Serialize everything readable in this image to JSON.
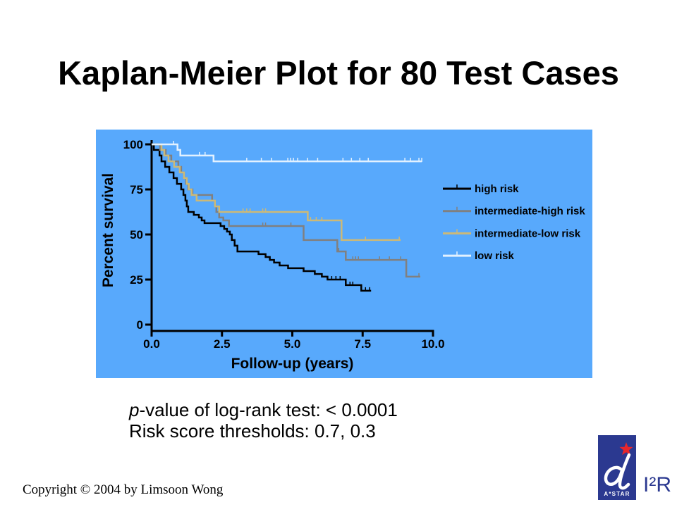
{
  "slide": {
    "title": "Kaplan-Meier Plot for 80 Test Cases",
    "note_italic": "p",
    "note_rest": "-value of log-rank test: < 0.0001",
    "thresholds": "Risk score thresholds: 0.7, 0.3",
    "copyright": "Copyright © 2004 by Limsoon Wong"
  },
  "logo": {
    "name": "A*STAR",
    "institute": "I²R",
    "panel_color": "#2B3990",
    "star_color": "#E8262B",
    "mark_color": "#FFFFFF"
  },
  "chart_data": {
    "type": "line",
    "step": true,
    "xlabel": "Follow-up (years)",
    "ylabel": "Percent survival",
    "xlim": [
      0,
      10
    ],
    "ylim": [
      0,
      100
    ],
    "x_ticks": [
      0,
      2.5,
      5,
      7.5,
      10
    ],
    "x_tick_labels": [
      "0.0",
      "2.5",
      "5.0",
      "7.5",
      "10.0"
    ],
    "y_ticks": [
      0,
      25,
      50,
      75,
      100
    ],
    "y_tick_labels": [
      "0",
      "25",
      "50",
      "75",
      "100"
    ],
    "grid": false,
    "legend": "right",
    "panel_color": "#58A9FC",
    "series": [
      {
        "name": "high risk",
        "color": "#000000",
        "points": [
          [
            0,
            100
          ],
          [
            0.08,
            96.9
          ],
          [
            0.28,
            93.8
          ],
          [
            0.35,
            90.6
          ],
          [
            0.48,
            87.5
          ],
          [
            0.63,
            84.4
          ],
          [
            0.78,
            81.3
          ],
          [
            0.9,
            78.1
          ],
          [
            1.05,
            75.0
          ],
          [
            1.13,
            71.9
          ],
          [
            1.2,
            68.8
          ],
          [
            1.25,
            65.6
          ],
          [
            1.3,
            62.5
          ],
          [
            1.5,
            60.9
          ],
          [
            1.68,
            59.4
          ],
          [
            1.78,
            57.8
          ],
          [
            1.88,
            56.3
          ],
          [
            2.45,
            54.7
          ],
          [
            2.58,
            53.1
          ],
          [
            2.68,
            51.6
          ],
          [
            2.78,
            50.0
          ],
          [
            2.85,
            46.9
          ],
          [
            2.95,
            43.8
          ],
          [
            3.05,
            40.6
          ],
          [
            3.8,
            39.1
          ],
          [
            4.05,
            37.5
          ],
          [
            4.2,
            35.9
          ],
          [
            4.35,
            34.4
          ],
          [
            4.55,
            32.8
          ],
          [
            4.85,
            31.3
          ],
          [
            5.4,
            29.7
          ],
          [
            5.8,
            28.1
          ],
          [
            6.05,
            26.6
          ],
          [
            6.25,
            25.0
          ],
          [
            6.9,
            21.9
          ],
          [
            7.45,
            18.8
          ],
          [
            7.8,
            18.8
          ]
        ],
        "censored": [
          [
            6.4,
            25.0
          ],
          [
            6.55,
            25.0
          ],
          [
            6.7,
            25.0
          ],
          [
            7.05,
            21.9
          ],
          [
            7.15,
            21.9
          ],
          [
            7.6,
            18.8
          ],
          [
            7.75,
            18.8
          ]
        ]
      },
      {
        "name": "intermediate-high risk",
        "color": "#808080",
        "points": [
          [
            0,
            100
          ],
          [
            0.3,
            96.9
          ],
          [
            0.5,
            93.8
          ],
          [
            0.7,
            90.6
          ],
          [
            0.95,
            87.5
          ],
          [
            1.05,
            84.4
          ],
          [
            1.15,
            81.3
          ],
          [
            1.22,
            78.1
          ],
          [
            1.3,
            75.0
          ],
          [
            1.45,
            71.9
          ],
          [
            2.15,
            68.8
          ],
          [
            2.25,
            65.6
          ],
          [
            2.3,
            62.5
          ],
          [
            2.4,
            59.4
          ],
          [
            2.55,
            57.8
          ],
          [
            2.75,
            54.7
          ],
          [
            5.4,
            46.9
          ],
          [
            6.6,
            40.6
          ],
          [
            6.9,
            35.9
          ],
          [
            9.05,
            26.6
          ],
          [
            9.55,
            26.6
          ]
        ],
        "censored": [
          [
            3.95,
            54.7
          ],
          [
            4.05,
            54.7
          ],
          [
            4.95,
            54.7
          ],
          [
            6.65,
            40.6
          ],
          [
            7.15,
            35.9
          ],
          [
            7.25,
            35.9
          ],
          [
            7.35,
            35.9
          ],
          [
            8.1,
            35.9
          ],
          [
            8.45,
            35.9
          ],
          [
            8.85,
            35.9
          ],
          [
            9.5,
            26.6
          ]
        ]
      },
      {
        "name": "intermediate-low risk",
        "color": "#CCB977",
        "points": [
          [
            0,
            100
          ],
          [
            0.35,
            96.9
          ],
          [
            0.45,
            93.8
          ],
          [
            0.6,
            90.6
          ],
          [
            0.8,
            87.5
          ],
          [
            1.0,
            84.4
          ],
          [
            1.15,
            81.3
          ],
          [
            1.25,
            78.1
          ],
          [
            1.32,
            75.0
          ],
          [
            1.42,
            71.9
          ],
          [
            1.6,
            68.8
          ],
          [
            2.25,
            65.6
          ],
          [
            2.4,
            62.5
          ],
          [
            5.55,
            57.8
          ],
          [
            6.75,
            46.9
          ],
          [
            8.85,
            46.9
          ]
        ],
        "censored": [
          [
            3.25,
            62.5
          ],
          [
            3.38,
            62.5
          ],
          [
            3.5,
            62.5
          ],
          [
            3.95,
            62.5
          ],
          [
            4.05,
            62.5
          ],
          [
            5.65,
            57.8
          ],
          [
            5.85,
            57.8
          ],
          [
            6.05,
            57.8
          ],
          [
            7.6,
            46.9
          ],
          [
            8.8,
            46.9
          ]
        ]
      },
      {
        "name": "low risk",
        "color": "#E2F1FF",
        "points": [
          [
            0,
            100
          ],
          [
            0.92,
            96.9
          ],
          [
            1.02,
            93.8
          ],
          [
            2.2,
            90.6
          ],
          [
            9.6,
            90.6
          ]
        ],
        "censored": [
          [
            0.78,
            100
          ],
          [
            1.7,
            93.8
          ],
          [
            1.9,
            93.8
          ],
          [
            3.38,
            90.6
          ],
          [
            3.9,
            90.6
          ],
          [
            4.26,
            90.6
          ],
          [
            4.84,
            90.6
          ],
          [
            4.94,
            90.6
          ],
          [
            5.04,
            90.6
          ],
          [
            5.19,
            90.6
          ],
          [
            5.54,
            90.6
          ],
          [
            5.9,
            90.6
          ],
          [
            6.8,
            90.6
          ],
          [
            7.1,
            90.6
          ],
          [
            7.4,
            90.6
          ],
          [
            7.7,
            90.6
          ],
          [
            9.0,
            90.6
          ],
          [
            9.2,
            90.6
          ],
          [
            9.5,
            90.6
          ],
          [
            9.6,
            90.6
          ]
        ]
      }
    ]
  }
}
